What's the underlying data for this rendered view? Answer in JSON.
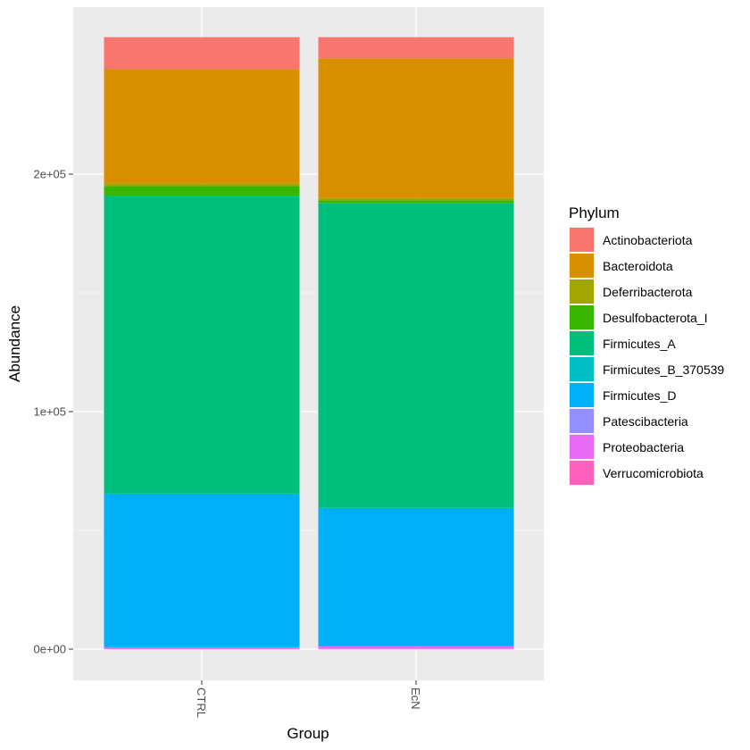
{
  "chart_data": {
    "type": "bar",
    "stacked": true,
    "title": "",
    "xlabel": "Group",
    "ylabel": "Abundance",
    "ylim": [
      -13000,
      270000
    ],
    "yticks": [
      0,
      100000,
      200000
    ],
    "ytick_labels": [
      "0e+00",
      "1e+05",
      "2e+05"
    ],
    "categories": [
      "CTRL",
      "EcN"
    ],
    "legend_title": "Phylum",
    "legend_position": "right",
    "grid": true,
    "series": [
      {
        "name": "Actinobacteriota",
        "color": "#F8766D",
        "values": [
          13500,
          8900
        ]
      },
      {
        "name": "Bacteroidota",
        "color": "#D89000",
        "values": [
          48000,
          58800
        ]
      },
      {
        "name": "Deferribacterota",
        "color": "#A3A500",
        "values": [
          1200,
          1000
        ]
      },
      {
        "name": "Desulfobacterota_I",
        "color": "#39B600",
        "values": [
          4000,
          1100
        ]
      },
      {
        "name": "Firmicutes_A",
        "color": "#00BF7D",
        "values": [
          125500,
          128400
        ]
      },
      {
        "name": "Firmicutes_B_370539",
        "color": "#00BFC4",
        "values": [
          50,
          50
        ]
      },
      {
        "name": "Firmicutes_D",
        "color": "#00B0F6",
        "values": [
          64600,
          58200
        ]
      },
      {
        "name": "Patescibacteria",
        "color": "#9590FF",
        "values": [
          50,
          50
        ]
      },
      {
        "name": "Proteobacteria",
        "color": "#E76BF3",
        "values": [
          700,
          1100
        ]
      },
      {
        "name": "Verrucomicrobiota",
        "color": "#FF62BC",
        "values": [
          50,
          50
        ]
      }
    ]
  }
}
